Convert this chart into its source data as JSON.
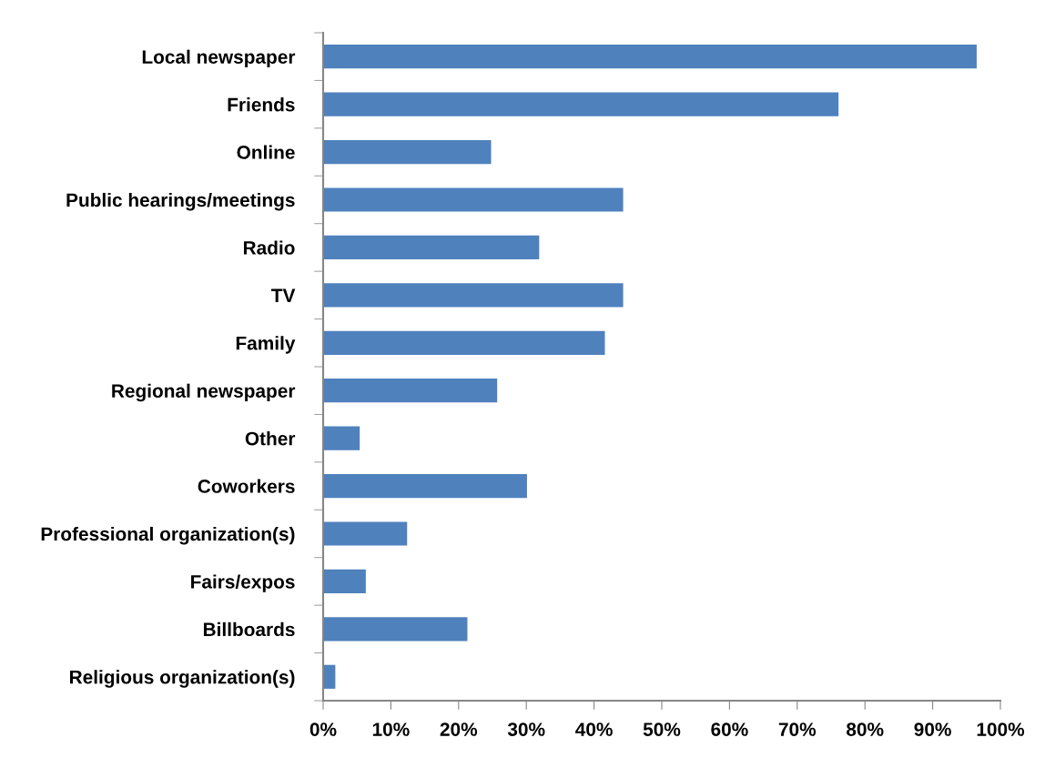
{
  "chart_data": {
    "type": "bar",
    "orientation": "horizontal",
    "color": "#4f81bd",
    "categories": [
      "Local newspaper",
      "Friends",
      "Online",
      "Public hearings/meetings",
      "Radio",
      "TV",
      "Family",
      "Regional newspaper",
      "Other",
      "Coworkers",
      "Professional organization(s)",
      "Fairs/expos",
      "Billboards",
      "Religious organization(s)"
    ],
    "values": [
      96.5,
      76.1,
      24.8,
      44.3,
      31.9,
      44.3,
      41.6,
      25.7,
      5.4,
      30.1,
      12.4,
      6.3,
      21.3,
      1.8
    ],
    "xlim": [
      0,
      100
    ],
    "xticks": [
      {
        "value": 0,
        "label": "0%"
      },
      {
        "value": 10,
        "label": "10%"
      },
      {
        "value": 20,
        "label": "20%"
      },
      {
        "value": 30,
        "label": "30%"
      },
      {
        "value": 40,
        "label": "40%"
      },
      {
        "value": 50,
        "label": "50%"
      },
      {
        "value": 60,
        "label": "60%"
      },
      {
        "value": 70,
        "label": "70%"
      },
      {
        "value": 80,
        "label": "80%"
      },
      {
        "value": 90,
        "label": "90%"
      },
      {
        "value": 100,
        "label": "100%"
      }
    ],
    "grid": false,
    "legend": false
  }
}
